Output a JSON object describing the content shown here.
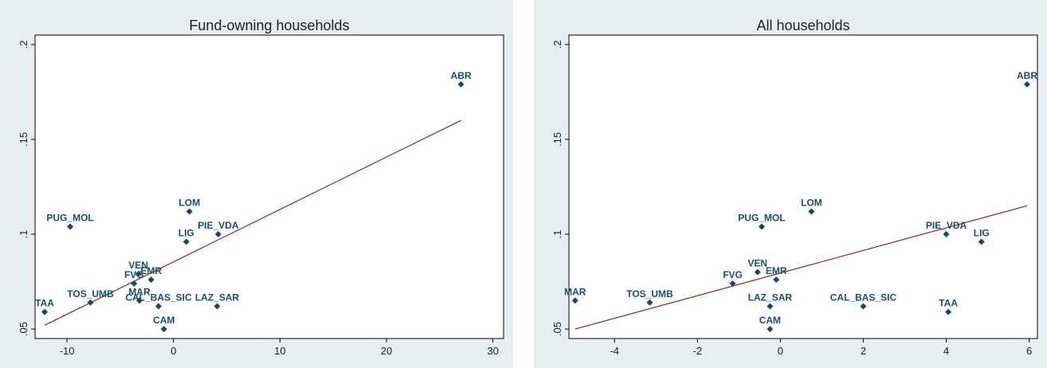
{
  "colors": {
    "outer_background": "#e7eef2",
    "plot_background": "#ffffff",
    "marker": "#1a4766",
    "fit_line": "#8b2323",
    "text": "#1f1f1f"
  },
  "chart_data": [
    {
      "type": "scatter",
      "title": "Fund-owning households",
      "xlabel": "",
      "ylabel": "",
      "xlim": [
        -13,
        31
      ],
      "ylim": [
        0.045,
        0.205
      ],
      "xticks": [
        -10,
        0,
        10,
        20,
        30
      ],
      "xtick_labels": [
        "-10",
        "0",
        "10",
        "20",
        "30"
      ],
      "yticks": [
        0.05,
        0.1,
        0.15,
        0.2
      ],
      "ytick_labels": [
        ".05",
        ".1",
        ".15",
        ".2"
      ],
      "grid": false,
      "points": [
        {
          "label": "ABR",
          "x": 27,
          "y": 0.179
        },
        {
          "label": "LOM",
          "x": 1.5,
          "y": 0.112
        },
        {
          "label": "PUG_MOL",
          "x": -9.7,
          "y": 0.104
        },
        {
          "label": "LIG",
          "x": 1.2,
          "y": 0.096
        },
        {
          "label": "PIE_VDA",
          "x": 4.2,
          "y": 0.1
        },
        {
          "label": "VEN",
          "x": -3.3,
          "y": 0.079
        },
        {
          "label": "EMR",
          "x": -2.1,
          "y": 0.076
        },
        {
          "label": "FVG",
          "x": -3.7,
          "y": 0.074
        },
        {
          "label": "MAR",
          "x": -3.2,
          "y": 0.065
        },
        {
          "label": "CAL_BAS_SIC",
          "x": -1.4,
          "y": 0.062
        },
        {
          "label": "LAZ_SAR",
          "x": 4.1,
          "y": 0.062
        },
        {
          "label": "TOS_UMB",
          "x": -7.8,
          "y": 0.064
        },
        {
          "label": "TAA",
          "x": -12.1,
          "y": 0.059
        },
        {
          "label": "CAM",
          "x": -0.9,
          "y": 0.05
        }
      ],
      "fit_line": {
        "x": [
          -12.1,
          27
        ],
        "y": [
          0.052,
          0.16
        ]
      }
    },
    {
      "type": "scatter",
      "title": "All households",
      "xlabel": "",
      "ylabel": "",
      "xlim": [
        -5.1,
        6.2
      ],
      "ylim": [
        0.045,
        0.205
      ],
      "xticks": [
        -4,
        -2,
        0,
        2,
        4,
        6
      ],
      "xtick_labels": [
        "-4",
        "-2",
        "0",
        "2",
        "4",
        "6"
      ],
      "yticks": [
        0.05,
        0.1,
        0.15,
        0.2
      ],
      "ytick_labels": [
        ".05",
        ".1",
        ".15",
        ".2"
      ],
      "grid": false,
      "points": [
        {
          "label": "ABR",
          "x": 5.95,
          "y": 0.179
        },
        {
          "label": "LOM",
          "x": 0.75,
          "y": 0.112
        },
        {
          "label": "PUG_MOL",
          "x": -0.45,
          "y": 0.104
        },
        {
          "label": "PIE_VDA",
          "x": 4.0,
          "y": 0.1
        },
        {
          "label": "LIG",
          "x": 4.85,
          "y": 0.096
        },
        {
          "label": "VEN",
          "x": -0.55,
          "y": 0.08
        },
        {
          "label": "EMR",
          "x": -0.1,
          "y": 0.076
        },
        {
          "label": "FVG",
          "x": -1.15,
          "y": 0.074
        },
        {
          "label": "MAR",
          "x": -4.95,
          "y": 0.065
        },
        {
          "label": "TOS_UMB",
          "x": -3.15,
          "y": 0.064
        },
        {
          "label": "LAZ_SAR",
          "x": -0.25,
          "y": 0.062
        },
        {
          "label": "CAL_BAS_SIC",
          "x": 2.0,
          "y": 0.062
        },
        {
          "label": "TAA",
          "x": 4.05,
          "y": 0.059
        },
        {
          "label": "CAM",
          "x": -0.25,
          "y": 0.05
        }
      ],
      "fit_line": {
        "x": [
          -4.95,
          5.95
        ],
        "y": [
          0.05,
          0.115
        ]
      }
    }
  ]
}
